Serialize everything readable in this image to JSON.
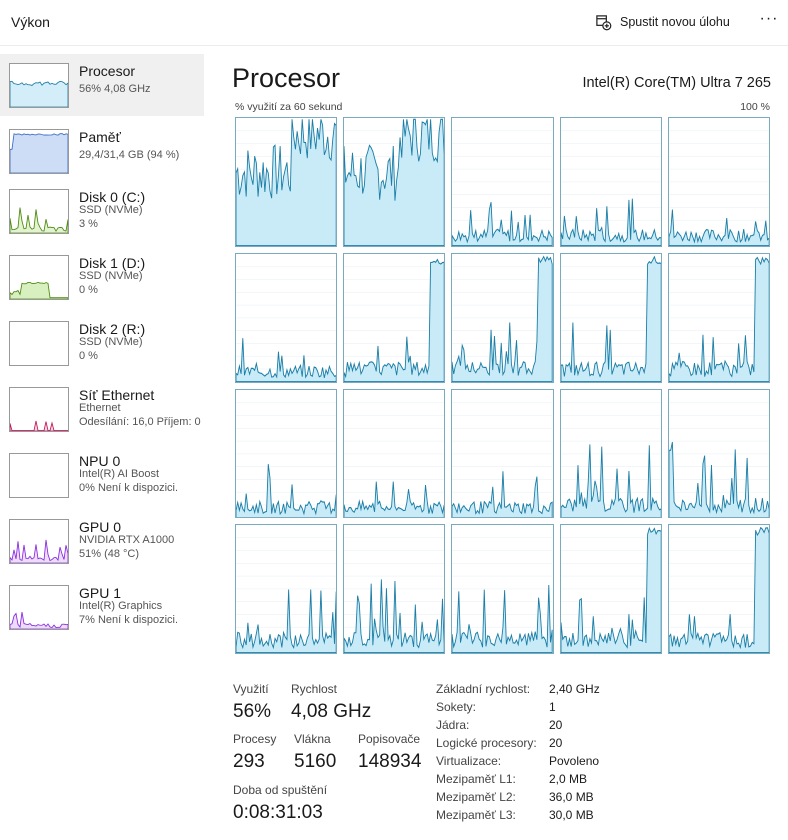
{
  "header": {
    "title": "Výkon",
    "new_task_label": "Spustit novou úlohu",
    "more_label": "···"
  },
  "sidebar": {
    "items": [
      {
        "name": "Procesor",
        "lines": [
          "56% 4,08 GHz"
        ],
        "color": "#1c7ea7",
        "fill": "#d4eef9"
      },
      {
        "name": "Paměť",
        "lines": [
          "29,4/31,4 GB (94 %)"
        ],
        "color": "#3b6cc7",
        "fill": "#cdddf5"
      },
      {
        "name": "Disk 0 (C:)",
        "lines": [
          "SSD (NVMe)",
          "3 %"
        ],
        "color": "#4d8a10",
        "fill": "#e3f2cf"
      },
      {
        "name": "Disk 1 (D:)",
        "lines": [
          "SSD (NVMe)",
          "0 %"
        ],
        "color": "#4d8a10",
        "fill": "#d8efbf"
      },
      {
        "name": "Disk 2 (R:)",
        "lines": [
          "SSD (NVMe)",
          "0 %"
        ],
        "color": "#4d8a10",
        "fill": "#e3f2cf"
      },
      {
        "name": "Síť Ethernet",
        "lines": [
          "Ethernet",
          "Odesílání: 16,0 Příjem: 0"
        ],
        "color": "#c2185b",
        "fill": "#f7d7e3"
      },
      {
        "name": "NPU 0",
        "lines": [
          "Intel(R) AI Boost",
          "0%  Není k dispozici."
        ],
        "color": "#1c7ea7",
        "fill": "#d4eef9"
      },
      {
        "name": "GPU 0",
        "lines": [
          "NVIDIA RTX A1000",
          "51% (48 °C)"
        ],
        "color": "#8a2be2",
        "fill": "#ecdcf8"
      },
      {
        "name": "GPU 1",
        "lines": [
          "Intel(R) Graphics",
          "7%  Není k dispozici."
        ],
        "color": "#8a2be2",
        "fill": "#ecdcf8"
      }
    ]
  },
  "main": {
    "title": "Procesor",
    "cpu_name": "Intel(R) Core(TM) Ultra 7 265",
    "axis_left": "% využití za 60 sekund",
    "axis_right": "100 %",
    "line_color": "#1c7ea7",
    "fill_color": "#c8ebf7"
  },
  "stats": {
    "utilization_label": "Využití",
    "utilization_value": "56%",
    "speed_label": "Rychlost",
    "speed_value": "4,08 GHz",
    "processes_label": "Procesy",
    "processes_value": "293",
    "threads_label": "Vlákna",
    "threads_value": "5160",
    "handles_label": "Popisovače",
    "handles_value": "148934",
    "uptime_label": "Doba od spuštění",
    "uptime_value": "0:08:31:03"
  },
  "details": [
    {
      "key": "Základní rychlost:",
      "value": "2,40 GHz"
    },
    {
      "key": "Sokety:",
      "value": "1"
    },
    {
      "key": "Jádra:",
      "value": "20"
    },
    {
      "key": "Logické procesory:",
      "value": "20"
    },
    {
      "key": "Virtualizace:",
      "value": "Povoleno"
    },
    {
      "key": "Mezipaměť L1:",
      "value": "2,0 MB"
    },
    {
      "key": "Mezipaměť L2:",
      "value": "36,0 MB"
    },
    {
      "key": "Mezipaměť L3:",
      "value": "30,0 MB"
    }
  ]
}
